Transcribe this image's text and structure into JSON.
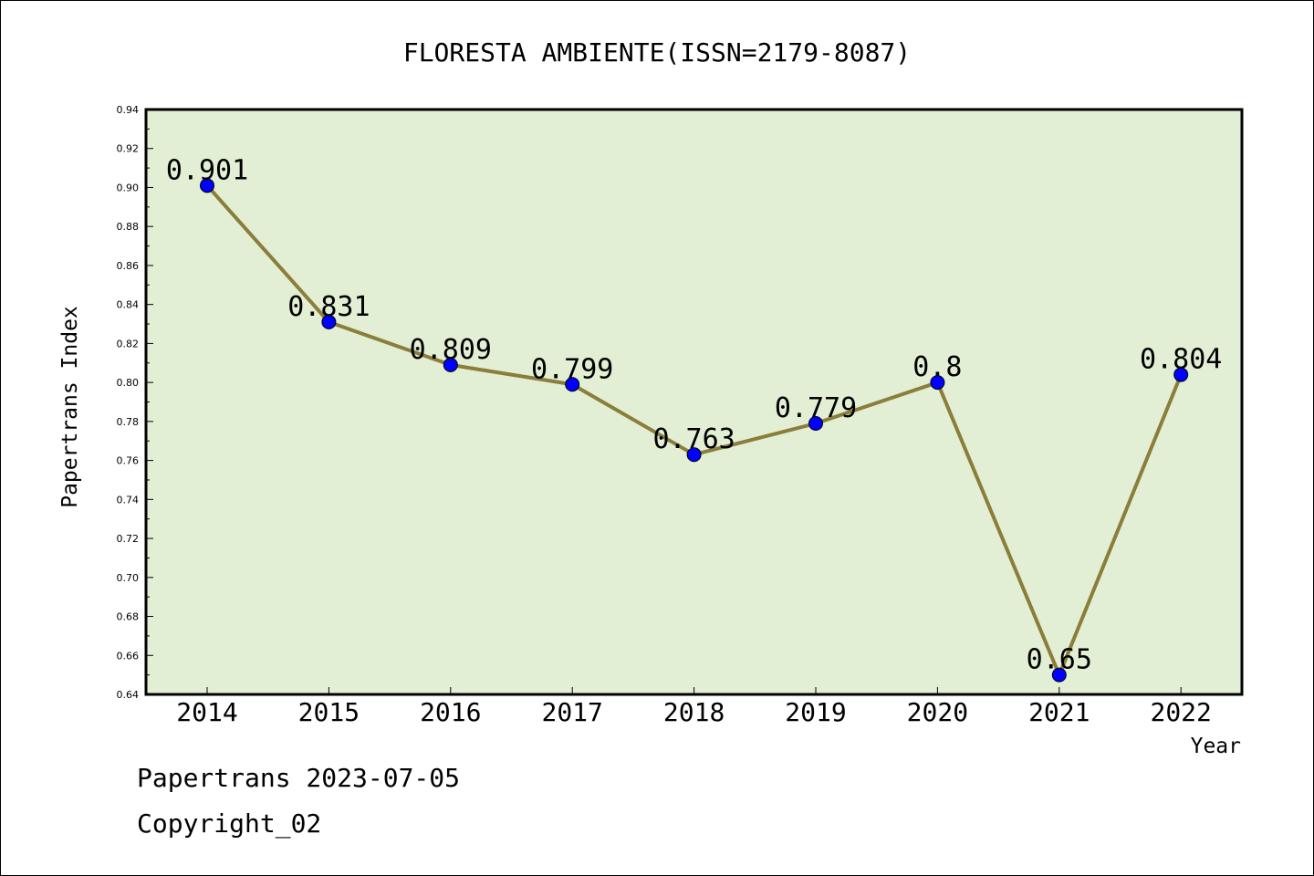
{
  "chart_data": {
    "type": "line",
    "title": "FLORESTA AMBIENTE(ISSN=2179-8087)",
    "xlabel": "Year",
    "ylabel": "Papertrans Index",
    "categories": [
      "2014",
      "2015",
      "2016",
      "2017",
      "2018",
      "2019",
      "2020",
      "2021",
      "2022"
    ],
    "series": [
      {
        "values": [
          0.901,
          0.831,
          0.809,
          0.799,
          0.763,
          0.779,
          0.8,
          0.65,
          0.804
        ]
      }
    ],
    "data_labels": [
      "0.901",
      "0.831",
      "0.809",
      "0.799",
      "0.763",
      "0.779",
      "0.8",
      "0.65",
      "0.804"
    ],
    "ylim": [
      0.64,
      0.94
    ],
    "yticks": [
      "0.64",
      "0.66",
      "0.68",
      "0.70",
      "0.72",
      "0.74",
      "0.76",
      "0.78",
      "0.80",
      "0.82",
      "0.84",
      "0.86",
      "0.88",
      "0.90",
      "0.92",
      "0.94"
    ],
    "grid": false,
    "colors": {
      "plot_background": "#e2efd4",
      "line": "#8b7d3a",
      "marker": "#0000ff"
    }
  },
  "footer": {
    "line1": "Papertrans 2023-07-05",
    "line2": "Copyright_02"
  }
}
